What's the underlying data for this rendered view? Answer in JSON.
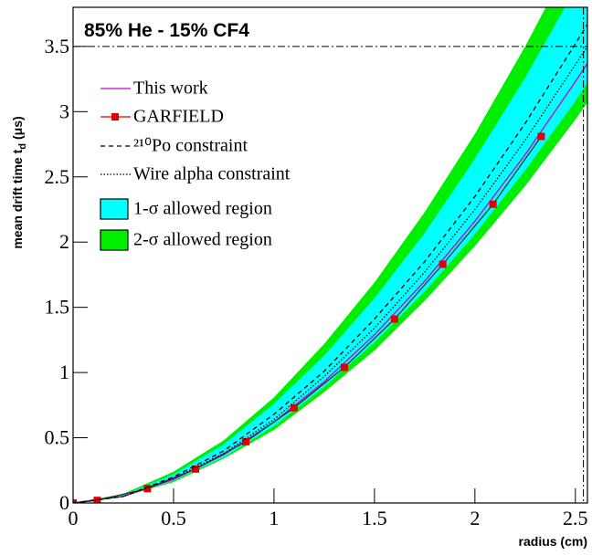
{
  "chart_data": {
    "type": "line",
    "title": "85% He - 15% CF4",
    "x_label": "radius (cm)",
    "y_label": "mean drift time t",
    "y_label_sub": "d",
    "y_label_unit": "(μs)",
    "xlim": [
      0,
      2.56
    ],
    "ylim": [
      0,
      3.8
    ],
    "xticks": [
      0,
      0.5,
      1,
      1.5,
      2,
      2.5
    ],
    "yticks": [
      0,
      0.5,
      1,
      1.5,
      2,
      2.5,
      3,
      3.5
    ],
    "grid": false,
    "legend": "top-left",
    "hline": 3.5,
    "vline": 2.54,
    "series": [
      {
        "name": "This work",
        "style": "line",
        "color": "#cc00cc",
        "x": [
          0,
          0.25,
          0.5,
          0.75,
          1,
          1.25,
          1.5,
          1.75,
          2,
          2.25,
          2.5,
          2.56
        ],
        "values": [
          0,
          0.05,
          0.18,
          0.37,
          0.62,
          0.93,
          1.29,
          1.7,
          2.16,
          2.67,
          3.23,
          3.37
        ]
      },
      {
        "name": "GARFIELD",
        "style": "marker-line",
        "color": "#e00000",
        "x": [
          0,
          0.12,
          0.37,
          0.61,
          0.86,
          1.1,
          1.35,
          1.6,
          1.84,
          2.09,
          2.33
        ],
        "values": [
          0,
          0.02,
          0.11,
          0.26,
          0.47,
          0.73,
          1.04,
          1.41,
          1.83,
          2.29,
          2.81
        ]
      },
      {
        "name": "²¹⁰Po constraint",
        "style": "dashed",
        "color": "#000000",
        "x": [
          0,
          0.25,
          0.5,
          0.75,
          1,
          1.25,
          1.5,
          1.75,
          2,
          2.25,
          2.5,
          2.56
        ],
        "values": [
          0,
          0.05,
          0.2,
          0.4,
          0.68,
          1.01,
          1.41,
          1.85,
          2.35,
          2.91,
          3.52,
          3.67
        ]
      },
      {
        "name": "Wire alpha constraint",
        "style": "dotted",
        "color": "#000000",
        "x": [
          0,
          0.25,
          0.5,
          0.75,
          1,
          1.25,
          1.5,
          1.75,
          2,
          2.25,
          2.5,
          2.56
        ],
        "values": [
          0,
          0.05,
          0.19,
          0.38,
          0.64,
          0.97,
          1.34,
          1.77,
          2.25,
          2.78,
          3.36,
          3.5
        ]
      },
      {
        "name": "1-σ allowed region",
        "style": "band",
        "color": "#00ffff",
        "x": [
          0,
          0.25,
          0.5,
          0.75,
          1,
          1.25,
          1.5,
          1.75,
          2,
          2.25,
          2.5,
          2.56
        ],
        "lower": [
          0,
          0.05,
          0.17,
          0.35,
          0.59,
          0.89,
          1.23,
          1.62,
          2.06,
          2.55,
          3.08,
          3.22
        ],
        "upper": [
          0,
          0.06,
          0.22,
          0.45,
          0.76,
          1.13,
          1.57,
          2.07,
          2.64,
          3.26,
          3.94,
          4.11
        ]
      },
      {
        "name": "2-σ allowed region",
        "style": "band",
        "color": "#00ee00",
        "x": [
          0,
          0.25,
          0.5,
          0.75,
          1,
          1.25,
          1.5,
          1.75,
          2,
          2.25,
          2.5,
          2.56
        ],
        "lower": [
          0,
          0.05,
          0.16,
          0.34,
          0.56,
          0.85,
          1.17,
          1.55,
          1.97,
          2.43,
          2.94,
          3.07
        ],
        "upper": [
          0,
          0.07,
          0.24,
          0.48,
          0.81,
          1.22,
          1.69,
          2.23,
          2.83,
          3.5,
          4.23,
          4.41
        ]
      }
    ]
  }
}
